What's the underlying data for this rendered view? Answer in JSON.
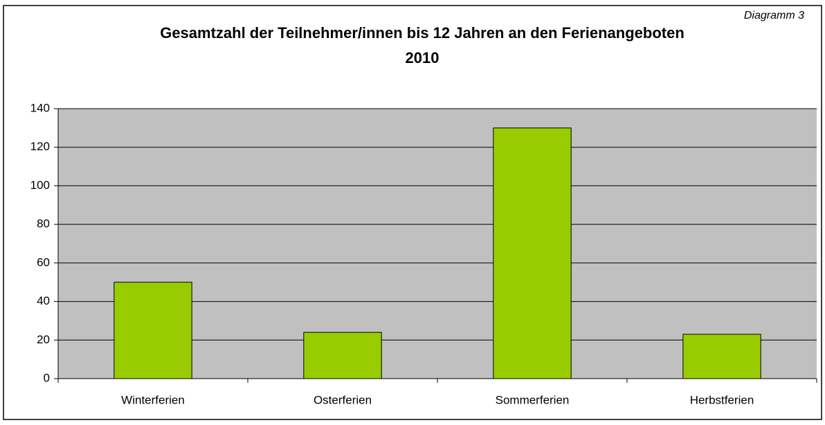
{
  "chart_data": {
    "type": "bar",
    "title": "Gesamtzahl der Teilnehmer/innen bis 12 Jahren an den Ferienangeboten 2010",
    "annotation": "Diagramm 3",
    "categories": [
      "Winterferien",
      "Osterferien",
      "Sommerferien",
      "Herbstferien"
    ],
    "values": [
      50,
      24,
      130,
      23
    ],
    "color": "#99cc00",
    "ylim": [
      0,
      140
    ],
    "yticks": [
      0,
      20,
      40,
      60,
      80,
      100,
      120,
      140
    ],
    "grid": true
  }
}
